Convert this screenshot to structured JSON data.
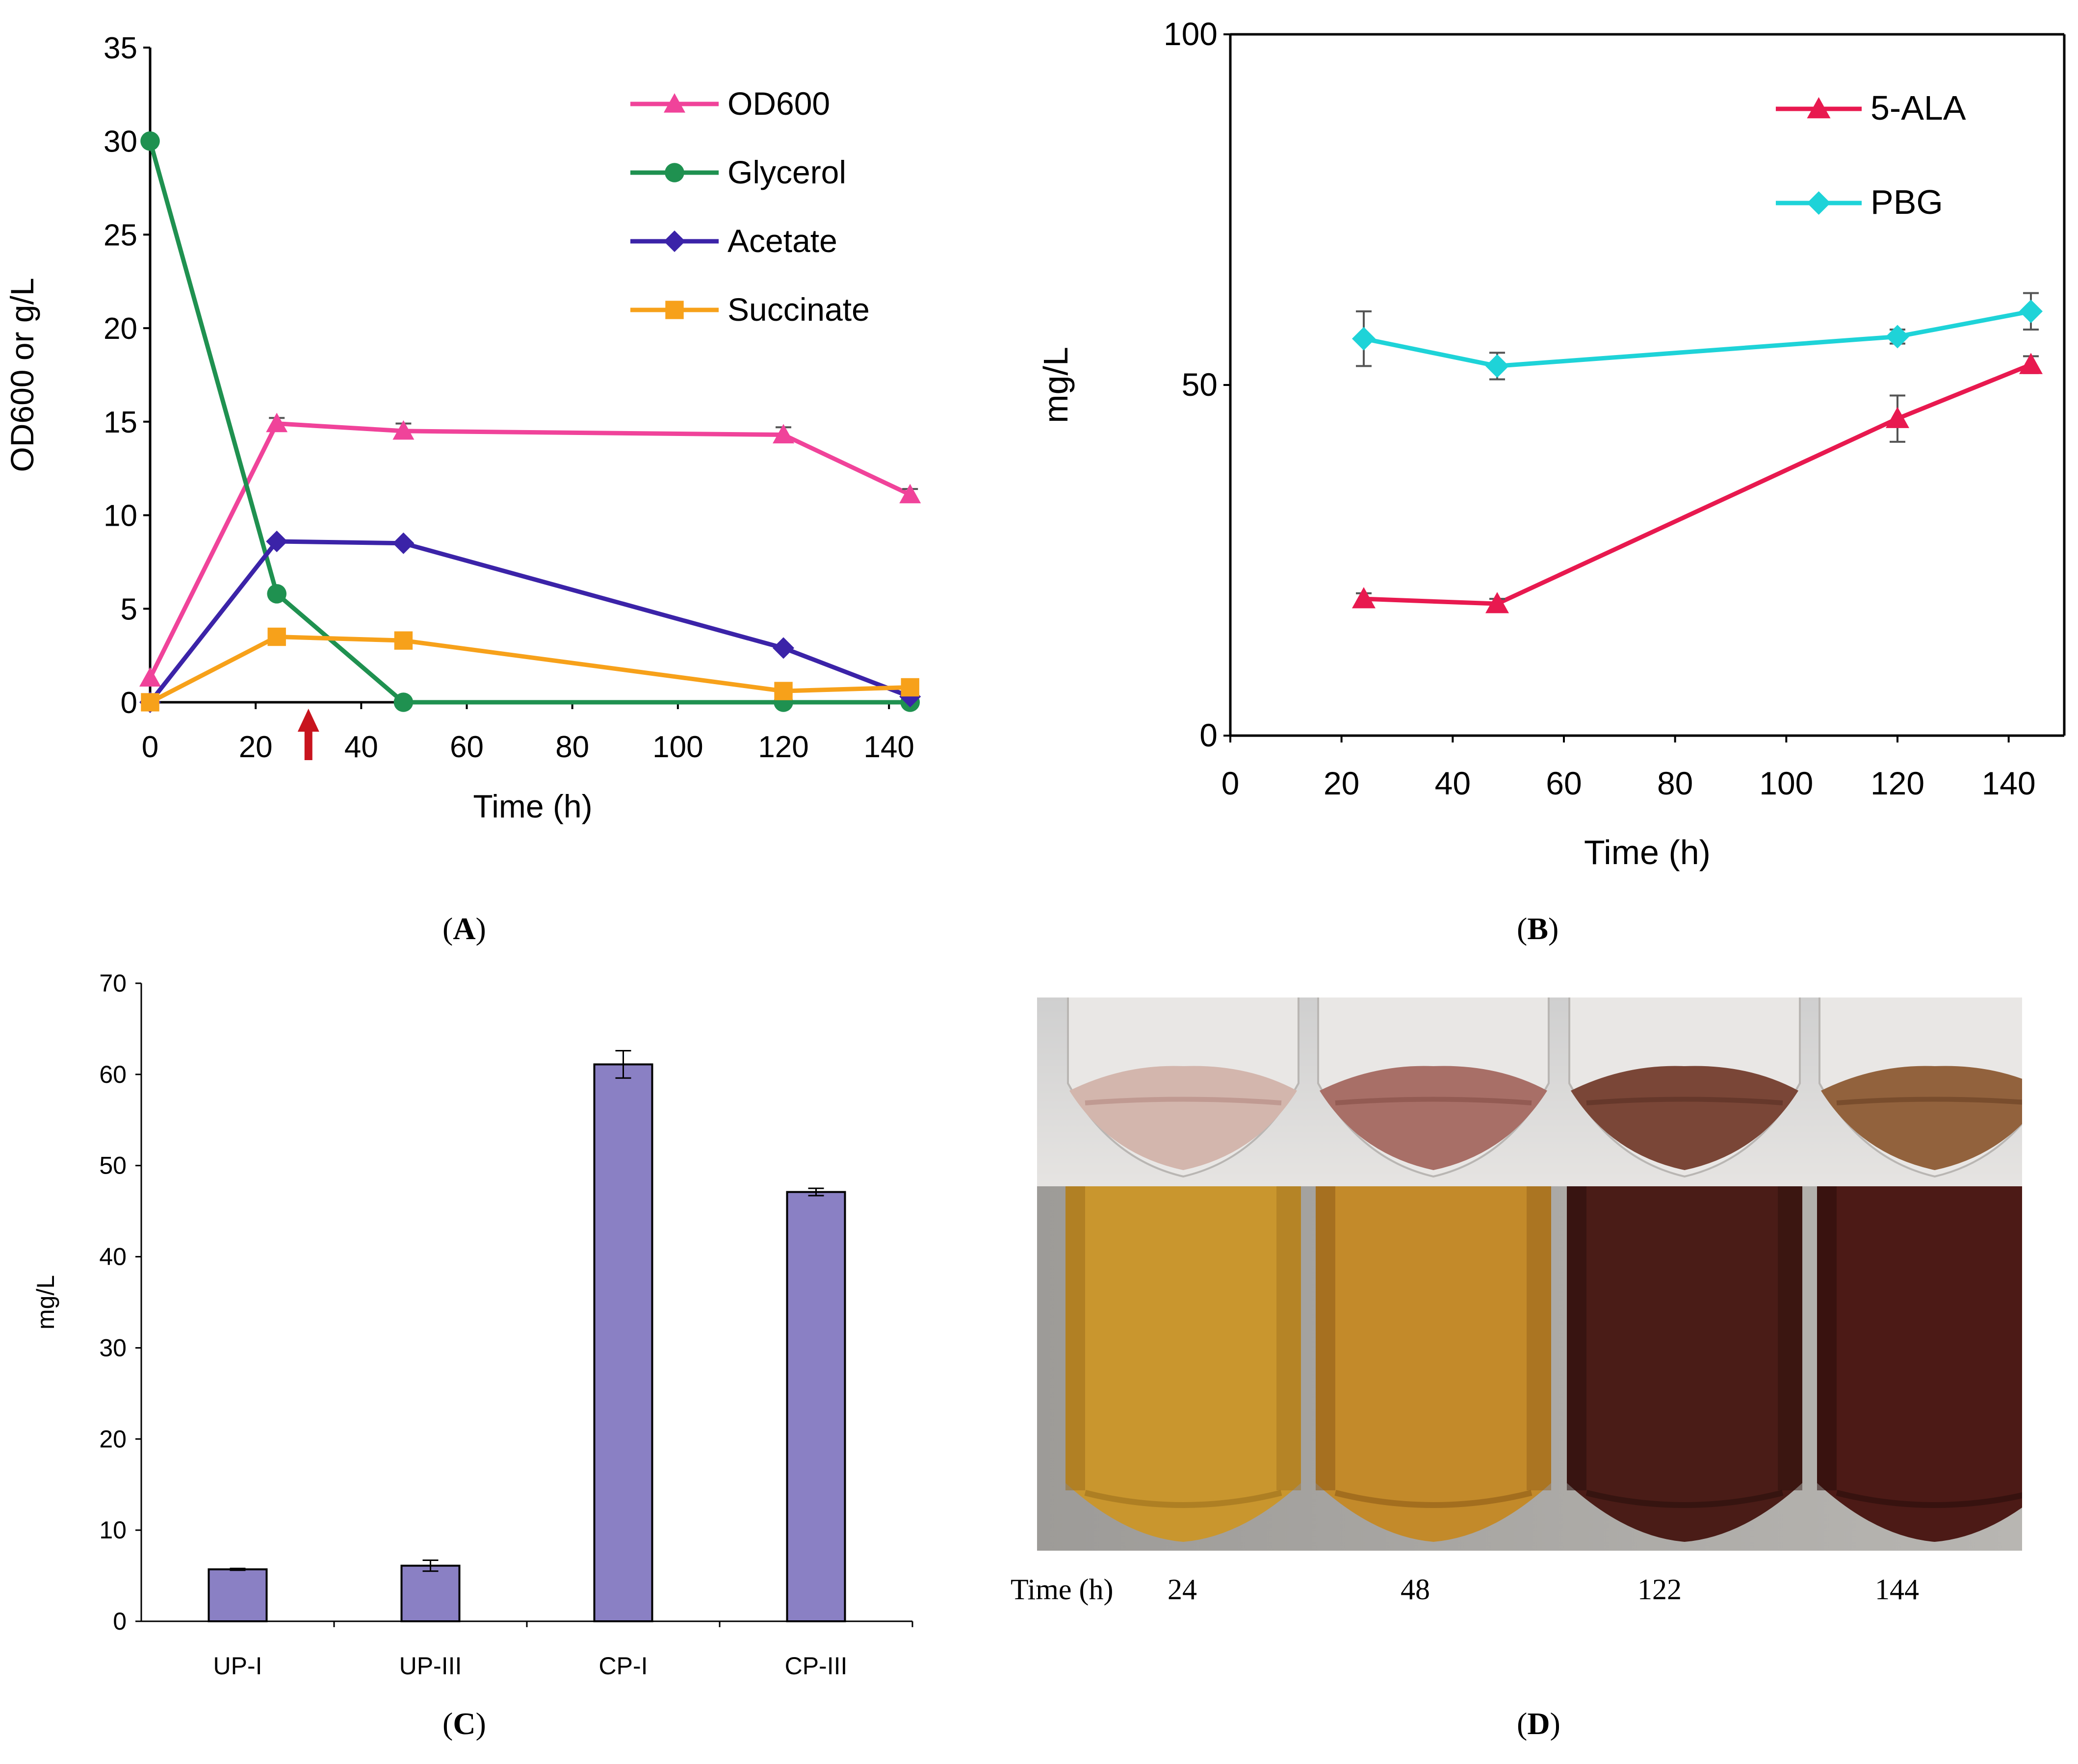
{
  "chart_data": [
    {
      "panel": "A",
      "type": "line",
      "xlabel": "Time (h)",
      "ylabel": "OD600 or g/L",
      "xlim": [
        0,
        145
      ],
      "ylim": [
        0,
        35
      ],
      "xticks": [
        0,
        20,
        40,
        60,
        80,
        100,
        120,
        140
      ],
      "yticks": [
        0,
        5,
        10,
        15,
        20,
        25,
        30,
        35
      ],
      "legend_position": "top-right",
      "annotation": "red upward arrow at Time 30 h",
      "series": [
        {
          "name": "OD600",
          "color": "#f0439a",
          "marker": "triangle",
          "x": [
            0,
            24,
            48,
            120,
            144
          ],
          "y": [
            1.3,
            14.9,
            14.5,
            14.3,
            11.1
          ],
          "err": [
            0,
            0.3,
            0.4,
            0.4,
            0.3
          ]
        },
        {
          "name": "Glycerol",
          "color": "#1f9150",
          "marker": "circle",
          "x": [
            0,
            24,
            48,
            120,
            144
          ],
          "y": [
            30.0,
            5.8,
            0.0,
            0.0,
            0.0
          ],
          "err": [
            0,
            0,
            0,
            0,
            0
          ]
        },
        {
          "name": "Acetate",
          "color": "#3b23a8",
          "marker": "diamond",
          "x": [
            0,
            24,
            48,
            120,
            144
          ],
          "y": [
            0.0,
            8.6,
            8.5,
            2.9,
            0.3
          ],
          "err": [
            0,
            0,
            0,
            0,
            0
          ]
        },
        {
          "name": "Succinate",
          "color": "#f7a11a",
          "marker": "square",
          "x": [
            0,
            24,
            48,
            120,
            144
          ],
          "y": [
            0.0,
            3.5,
            3.3,
            0.6,
            0.8
          ],
          "err": [
            0,
            0,
            0,
            0,
            0
          ]
        }
      ]
    },
    {
      "panel": "B",
      "type": "line",
      "xlabel": "Time (h)",
      "ylabel": "mg/L",
      "xlim": [
        0,
        150
      ],
      "ylim": [
        0,
        100
      ],
      "xticks": [
        0,
        20,
        40,
        60,
        80,
        100,
        120,
        140
      ],
      "yticks": [
        0,
        50,
        100
      ],
      "legend_position": "top-right",
      "series": [
        {
          "name": "5-ALA",
          "color": "#e8194f",
          "marker": "triangle",
          "x": [
            24,
            48,
            120,
            144
          ],
          "y": [
            19.5,
            18.8,
            45.2,
            52.9
          ],
          "err": [
            0.8,
            0.7,
            3.3,
            1.2
          ]
        },
        {
          "name": "PBG",
          "color": "#1ed3d8",
          "marker": "diamond",
          "x": [
            24,
            48,
            120,
            144
          ],
          "y": [
            56.6,
            52.7,
            56.9,
            60.5
          ],
          "err": [
            3.9,
            1.9,
            1.0,
            2.6
          ]
        }
      ]
    },
    {
      "panel": "C",
      "type": "bar",
      "xlabel": "",
      "ylabel": "mg/L",
      "ylim": [
        0,
        70
      ],
      "yticks": [
        0,
        10,
        20,
        30,
        40,
        50,
        60,
        70
      ],
      "categories": [
        "UP-I",
        "UP-III",
        "CP-I",
        "CP-III"
      ],
      "values": [
        5.7,
        6.1,
        61.1,
        47.1
      ],
      "err": [
        0.1,
        0.6,
        1.5,
        0.4
      ],
      "color": "#8a80c4"
    }
  ],
  "panel_labels": {
    "a": "A",
    "b": "B",
    "c": "C",
    "d": "D"
  },
  "panel_d": {
    "time_label": "Time (h)",
    "times": [
      "24",
      "48",
      "122",
      "144"
    ],
    "tubes_top": [
      {
        "fill": "#d3b6ad",
        "band": "#b88f86"
      },
      {
        "fill": "#a86f67",
        "band": "#8a524b"
      },
      {
        "fill": "#7a4637",
        "band": "#5e3226"
      },
      {
        "fill": "#92623d",
        "band": "#6f4526"
      }
    ],
    "tubes_bottom": [
      {
        "fill": "#c9962e",
        "dark": "#9d6f1d"
      },
      {
        "fill": "#c38a2a",
        "dark": "#8e5b18"
      },
      {
        "fill": "#4a1c17",
        "dark": "#2a0f0c"
      },
      {
        "fill": "#4c1a16",
        "dark": "#2a0d0b"
      }
    ]
  }
}
